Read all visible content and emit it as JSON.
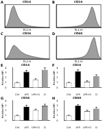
{
  "chart_data": [
    {
      "type": "histogram_line",
      "label": "A",
      "title": "CD14",
      "x_label": "FL1-H",
      "x": [
        0,
        5,
        10,
        15,
        20,
        25,
        30,
        35,
        40,
        45,
        50,
        55,
        60,
        65,
        70,
        75,
        80,
        85,
        90,
        95,
        100
      ],
      "values": [
        0,
        10,
        40,
        80,
        95,
        70,
        45,
        30,
        20,
        14,
        10,
        7,
        5,
        4,
        3,
        2,
        1,
        1,
        0,
        0,
        0
      ],
      "color": "#9e9e9e",
      "xlim": [
        0,
        100
      ],
      "ylim": [
        0,
        100
      ],
      "tick_labels": false,
      "grid": false
    },
    {
      "type": "histogram_line",
      "label": "B",
      "title": "CD16",
      "x_label": "FL1-H",
      "x": [
        0,
        5,
        10,
        15,
        20,
        25,
        30,
        35,
        40,
        45,
        50,
        55,
        60,
        65,
        70,
        75,
        80,
        85,
        90,
        95,
        100
      ],
      "values": [
        0,
        0,
        0,
        1,
        1,
        2,
        2,
        3,
        4,
        5,
        7,
        10,
        15,
        25,
        40,
        65,
        90,
        70,
        30,
        8,
        0
      ],
      "color": "#9e9e9e",
      "xlim": [
        0,
        100
      ],
      "ylim": [
        0,
        100
      ],
      "tick_labels": false,
      "grid": false
    },
    {
      "type": "histogram_line",
      "label": "C",
      "title": "CD36",
      "x_label": "FL1-H",
      "x": [
        0,
        5,
        10,
        15,
        20,
        25,
        30,
        35,
        40,
        45,
        50,
        55,
        60,
        65,
        70,
        75,
        80,
        85,
        90,
        95,
        100
      ],
      "values": [
        0,
        5,
        20,
        45,
        60,
        55,
        45,
        35,
        28,
        22,
        18,
        15,
        12,
        10,
        8,
        6,
        4,
        3,
        2,
        1,
        0
      ],
      "color": "#9e9e9e",
      "xlim": [
        0,
        100
      ],
      "ylim": [
        0,
        100
      ],
      "tick_labels": false,
      "grid": false
    },
    {
      "type": "histogram_line",
      "label": "D",
      "title": "CD68",
      "x_label": "FL1-H",
      "x": [
        0,
        5,
        10,
        15,
        20,
        25,
        30,
        35,
        40,
        45,
        50,
        55,
        60,
        65,
        70,
        75,
        80,
        85,
        90,
        95,
        100
      ],
      "values": [
        0,
        0,
        0,
        0,
        1,
        1,
        2,
        2,
        3,
        4,
        5,
        7,
        10,
        16,
        28,
        50,
        80,
        95,
        55,
        15,
        0
      ],
      "color": "#9e9e9e",
      "xlim": [
        0,
        100
      ],
      "ylim": [
        0,
        100
      ],
      "tick_labels": false,
      "grid": false
    },
    {
      "type": "bar",
      "label": "E",
      "title": "CD14",
      "y_label": "Relative MFI",
      "categories": [
        "Ctrl",
        "LPS",
        "LPS+D",
        "D"
      ],
      "values": [
        1.0,
        3.2,
        1.6,
        3.6
      ],
      "errors": [
        0.1,
        0.3,
        0.2,
        0.4
      ],
      "colors": [
        "#ffffff",
        "#000000",
        "#ffffff",
        "#9e9e9e"
      ],
      "ylim": [
        0,
        4
      ],
      "yticks": [
        0,
        1,
        2,
        3,
        4
      ],
      "grid": false
    },
    {
      "type": "bar",
      "label": "F",
      "title": "CD16",
      "y_label": "Relative MFI",
      "categories": [
        "Ctrl",
        "LPS",
        "LPS+D",
        "D"
      ],
      "values": [
        1.0,
        3.3,
        1.2,
        2.3
      ],
      "errors": [
        0.1,
        0.3,
        0.2,
        0.3
      ],
      "colors": [
        "#ffffff",
        "#000000",
        "#ffffff",
        "#9e9e9e"
      ],
      "ylim": [
        0,
        4
      ],
      "yticks": [
        0,
        1,
        2,
        3,
        4
      ],
      "grid": false
    },
    {
      "type": "bar",
      "label": "G",
      "title": "CD36",
      "y_label": "Relative MFI",
      "categories": [
        "Ctrl",
        "LPS",
        "LPS+D",
        "D"
      ],
      "values": [
        1.0,
        2.8,
        2.1,
        3.0
      ],
      "errors": [
        0.1,
        0.3,
        0.2,
        0.3
      ],
      "colors": [
        "#ffffff",
        "#000000",
        "#ffffff",
        "#9e9e9e"
      ],
      "ylim": [
        0,
        4
      ],
      "yticks": [
        0,
        1,
        2,
        3,
        4
      ],
      "grid": false
    },
    {
      "type": "bar",
      "label": "H",
      "title": "CD68",
      "y_label": "Relative MFI",
      "categories": [
        "Ctrl",
        "LPS",
        "LPS+D",
        "D"
      ],
      "values": [
        1.0,
        3.0,
        1.9,
        2.4
      ],
      "errors": [
        0.1,
        0.2,
        0.2,
        0.3
      ],
      "colors": [
        "#ffffff",
        "#000000",
        "#ffffff",
        "#9e9e9e"
      ],
      "ylim": [
        0,
        4
      ],
      "yticks": [
        0,
        1,
        2,
        3,
        4
      ],
      "grid": false
    }
  ]
}
